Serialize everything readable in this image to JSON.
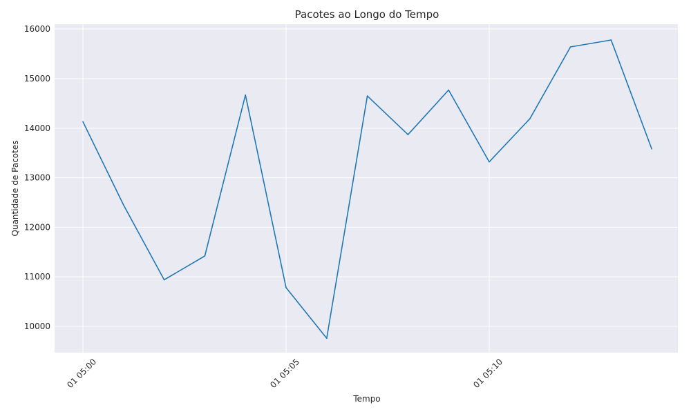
{
  "chart_data": {
    "type": "line",
    "title": "Pacotes ao Longo do Tempo",
    "xlabel": "Tempo",
    "ylabel": "Quantidade de Pacotes",
    "x_ticks": [
      "01 05:00",
      "01 05:05",
      "01 05:10"
    ],
    "y_ticks": [
      "10000",
      "11000",
      "12000",
      "13000",
      "14000",
      "15000",
      "16000"
    ],
    "x": [
      "05:00",
      "05:01",
      "05:02",
      "05:03",
      "05:04",
      "05:05",
      "05:06",
      "05:07",
      "05:08",
      "05:09",
      "05:10",
      "05:11",
      "05:12",
      "05:13",
      "05:14"
    ],
    "series": [
      {
        "values": [
          14130,
          12450,
          10940,
          11420,
          14670,
          10780,
          9760,
          14650,
          13870,
          14770,
          13320,
          14190,
          15640,
          15780,
          13580
        ],
        "color": "#1f77b4"
      }
    ],
    "ylim": [
      9470,
      16100
    ],
    "grid": true,
    "background": "#eaeaf2",
    "grid_color": "#ffffff"
  }
}
